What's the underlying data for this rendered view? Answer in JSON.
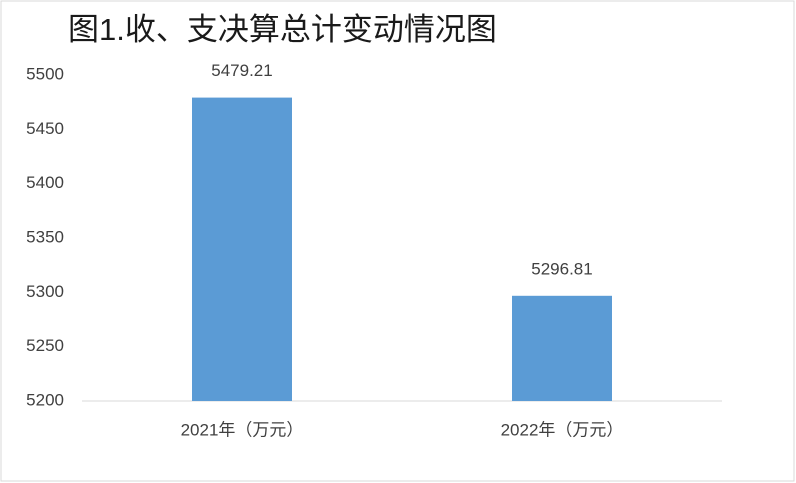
{
  "chart_data": {
    "type": "bar",
    "title": "图1.收、支决算总计变动情况图",
    "categories": [
      "2021年（万元）",
      "2022年（万元）"
    ],
    "values": [
      5479.21,
      5296.81
    ],
    "color": "#5b9bd5",
    "ylim": [
      5200,
      5500
    ],
    "yticks": [
      5200,
      5250,
      5300,
      5350,
      5400,
      5450,
      5500
    ],
    "grid": false
  }
}
